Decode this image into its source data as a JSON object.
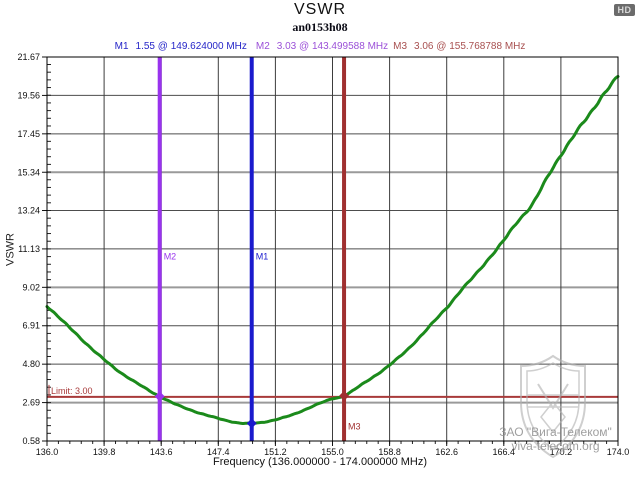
{
  "window": {
    "hd_badge": "HD"
  },
  "header": {
    "title": "VSWR",
    "subtitle": "an0153h08"
  },
  "readout": {
    "m1": {
      "label": "M1",
      "text": "1.55 @ 149.624000 MHz",
      "color": "#2525c8"
    },
    "m2": {
      "label": "M2",
      "text": "3.03 @ 143.499588 MHz",
      "color": "#9b50d8"
    },
    "m3": {
      "label": "M3",
      "text": "3.06 @ 155.768788 MHz",
      "color": "#a85050"
    }
  },
  "chart_data": {
    "type": "line",
    "title": "VSWR",
    "subtitle": "an0153h08",
    "xlabel": "Frequency (136.000000 - 174.000000 MHz)",
    "ylabel": "VSWR",
    "xlim": [
      136.0,
      174.0
    ],
    "ylim": [
      0.58,
      21.67
    ],
    "grid": true,
    "x_tick_values": [
      136.0,
      139.8,
      143.6,
      147.4,
      151.2,
      155.0,
      158.8,
      162.6,
      166.4,
      170.2,
      174.0
    ],
    "x_tick_labels": [
      "136.0",
      "139.8",
      "143.6",
      "147.4",
      "151.2",
      "155.0",
      "158.8",
      "162.6",
      "166.4",
      "170.2",
      "174.0"
    ],
    "y_tick_values": [
      0.58,
      2.69,
      4.8,
      6.91,
      9.02,
      11.13,
      13.24,
      15.34,
      17.45,
      19.56,
      21.67
    ],
    "y_tick_labels": [
      "0.58",
      "2.69",
      "4.80",
      "6.91",
      "9.02",
      "11.13",
      "13.24",
      "15.34",
      "17.45",
      "19.56",
      "21.67"
    ],
    "y_ticks_emphasized": [
      2.69,
      9.02,
      15.34
    ],
    "x_minor_step": 0.76,
    "y_minor_step": 0.422,
    "series": [
      {
        "name": "VSWR",
        "color": "#1b8a1b",
        "points": [
          [
            136.0,
            8.0
          ],
          [
            137.0,
            7.2
          ],
          [
            137.9,
            6.5
          ],
          [
            138.9,
            5.7
          ],
          [
            139.8,
            5.05
          ],
          [
            140.8,
            4.4
          ],
          [
            141.7,
            3.9
          ],
          [
            142.6,
            3.45
          ],
          [
            143.5,
            3.03
          ],
          [
            144.5,
            2.62
          ],
          [
            145.5,
            2.3
          ],
          [
            146.4,
            2.05
          ],
          [
            147.4,
            1.82
          ],
          [
            148.4,
            1.62
          ],
          [
            149.0,
            1.55
          ],
          [
            149.624,
            1.55
          ],
          [
            150.3,
            1.6
          ],
          [
            151.2,
            1.75
          ],
          [
            152.2,
            1.98
          ],
          [
            153.1,
            2.28
          ],
          [
            154.0,
            2.6
          ],
          [
            155.0,
            2.9
          ],
          [
            155.77,
            3.06
          ],
          [
            156.9,
            3.65
          ],
          [
            157.8,
            4.15
          ],
          [
            158.8,
            4.75
          ],
          [
            159.8,
            5.45
          ],
          [
            160.7,
            6.2
          ],
          [
            161.6,
            7.0
          ],
          [
            162.6,
            7.9
          ],
          [
            163.5,
            8.8
          ],
          [
            164.5,
            9.7
          ],
          [
            165.4,
            10.6
          ],
          [
            166.4,
            11.6
          ],
          [
            167.3,
            12.6
          ],
          [
            168.3,
            13.6
          ],
          [
            169.2,
            14.9
          ],
          [
            170.2,
            16.3
          ],
          [
            171.1,
            17.4
          ],
          [
            172.1,
            18.5
          ],
          [
            173.0,
            19.6
          ],
          [
            174.0,
            20.6
          ]
        ]
      }
    ],
    "markers": [
      {
        "name": "M1",
        "freq": 149.624,
        "value": 1.55,
        "color": "#1a1acd",
        "label_value": 10.55
      },
      {
        "name": "M2",
        "freq": 143.499588,
        "value": 3.03,
        "color": "#9933ee",
        "label_value": 10.55
      },
      {
        "name": "M3",
        "freq": 155.768788,
        "value": 3.06,
        "color": "#a03030",
        "label_value": 1.22
      }
    ],
    "limit": {
      "label": "Limit: 3.00",
      "value": 3.0,
      "color": "#a83a3a"
    }
  },
  "watermark": {
    "line1": "ЗАО \"Вига-Телеком\"",
    "line2": "viva-telecom.org"
  }
}
